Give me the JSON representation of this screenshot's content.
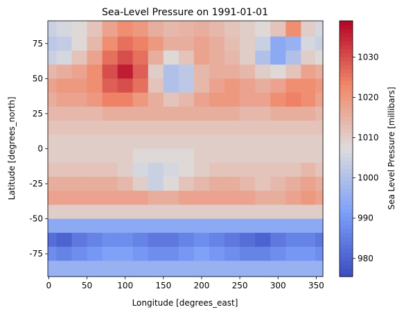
{
  "chart_data": {
    "type": "heatmap",
    "title": "Sea-Level Pressure on 1991-01-01",
    "xlabel": "Longitude [degrees_east]",
    "ylabel": "Latitude [degrees_north]",
    "xlim": [
      -1.25,
      358.75
    ],
    "ylim": [
      -91.25,
      91.25
    ],
    "xticks": [
      0,
      50,
      100,
      150,
      200,
      250,
      300,
      350
    ],
    "yticks": [
      -75,
      -50,
      -25,
      0,
      25,
      50,
      75
    ],
    "colorbar": {
      "label": "Sea Level Pressure [millibars]",
      "min": 975.5,
      "max": 1039,
      "ticks": [
        980,
        990,
        1000,
        1010,
        1020,
        1030
      ],
      "colormap": "coolwarm"
    },
    "grid": false,
    "x_values": [
      0,
      20,
      40,
      60,
      80,
      100,
      120,
      140,
      160,
      180,
      200,
      220,
      240,
      260,
      280,
      300,
      320,
      340,
      357.5
    ],
    "y_values": [
      85,
      75,
      65,
      55,
      45,
      35,
      25,
      15,
      5,
      -5,
      -15,
      -25,
      -35,
      -45,
      -55,
      -65,
      -75,
      -85
    ],
    "values": [
      [
        1004,
        1006,
        1008,
        1012,
        1018,
        1022,
        1020,
        1016,
        1014,
        1015,
        1016,
        1014,
        1012,
        1010,
        1008,
        1012,
        1022,
        1010,
        1006
      ],
      [
        1002,
        1003,
        1008,
        1014,
        1022,
        1026,
        1024,
        1020,
        1016,
        1016,
        1018,
        1016,
        1013,
        1010,
        1004,
        994,
        996,
        1006,
        1004
      ],
      [
        1004,
        1006,
        1012,
        1018,
        1026,
        1030,
        1026,
        1016,
        1008,
        1012,
        1018,
        1016,
        1014,
        1010,
        1000,
        994,
        1000,
        1010,
        1008
      ],
      [
        1014,
        1016,
        1018,
        1022,
        1030,
        1036,
        1028,
        1010,
        1000,
        1002,
        1014,
        1016,
        1016,
        1014,
        1010,
        1008,
        1012,
        1018,
        1016
      ],
      [
        1018,
        1020,
        1020,
        1022,
        1028,
        1030,
        1026,
        1012,
        1000,
        1002,
        1014,
        1018,
        1020,
        1018,
        1016,
        1018,
        1022,
        1022,
        1020
      ],
      [
        1016,
        1018,
        1018,
        1020,
        1024,
        1024,
        1020,
        1016,
        1012,
        1014,
        1018,
        1020,
        1020,
        1018,
        1018,
        1022,
        1024,
        1022,
        1018
      ],
      [
        1014,
        1014,
        1014,
        1014,
        1016,
        1016,
        1016,
        1016,
        1016,
        1016,
        1016,
        1016,
        1016,
        1014,
        1014,
        1016,
        1016,
        1016,
        1014
      ],
      [
        1012,
        1012,
        1012,
        1012,
        1012,
        1012,
        1012,
        1012,
        1012,
        1012,
        1012,
        1012,
        1012,
        1012,
        1012,
        1012,
        1012,
        1012,
        1012
      ],
      [
        1010,
        1010,
        1010,
        1010,
        1010,
        1010,
        1010,
        1010,
        1010,
        1010,
        1010,
        1010,
        1010,
        1010,
        1010,
        1010,
        1010,
        1010,
        1010
      ],
      [
        1010,
        1010,
        1010,
        1010,
        1010,
        1010,
        1008,
        1008,
        1008,
        1008,
        1010,
        1010,
        1010,
        1010,
        1010,
        1010,
        1010,
        1010,
        1010
      ],
      [
        1012,
        1012,
        1012,
        1012,
        1012,
        1010,
        1006,
        1004,
        1006,
        1008,
        1010,
        1012,
        1012,
        1012,
        1012,
        1012,
        1012,
        1014,
        1012
      ],
      [
        1016,
        1016,
        1016,
        1016,
        1016,
        1014,
        1010,
        1004,
        1008,
        1012,
        1014,
        1016,
        1016,
        1014,
        1012,
        1014,
        1016,
        1018,
        1016
      ],
      [
        1018,
        1018,
        1018,
        1018,
        1018,
        1018,
        1018,
        1016,
        1016,
        1018,
        1018,
        1018,
        1018,
        1018,
        1016,
        1016,
        1018,
        1020,
        1018
      ],
      [
        1010,
        1010,
        1010,
        1010,
        1010,
        1010,
        1010,
        1010,
        1010,
        1010,
        1010,
        1010,
        1010,
        1010,
        1010,
        1010,
        1010,
        1010,
        1010
      ],
      [
        994,
        994,
        994,
        994,
        994,
        994,
        994,
        994,
        994,
        994,
        994,
        994,
        994,
        994,
        994,
        994,
        994,
        994,
        994
      ],
      [
        982,
        980,
        984,
        986,
        988,
        988,
        986,
        984,
        984,
        986,
        988,
        986,
        984,
        982,
        980,
        984,
        986,
        986,
        984
      ],
      [
        988,
        986,
        988,
        990,
        992,
        992,
        990,
        988,
        988,
        990,
        992,
        990,
        988,
        986,
        986,
        988,
        990,
        990,
        988
      ],
      [
        996,
        996,
        996,
        996,
        996,
        996,
        996,
        996,
        996,
        996,
        996,
        996,
        996,
        996,
        996,
        996,
        996,
        996,
        996
      ]
    ]
  }
}
